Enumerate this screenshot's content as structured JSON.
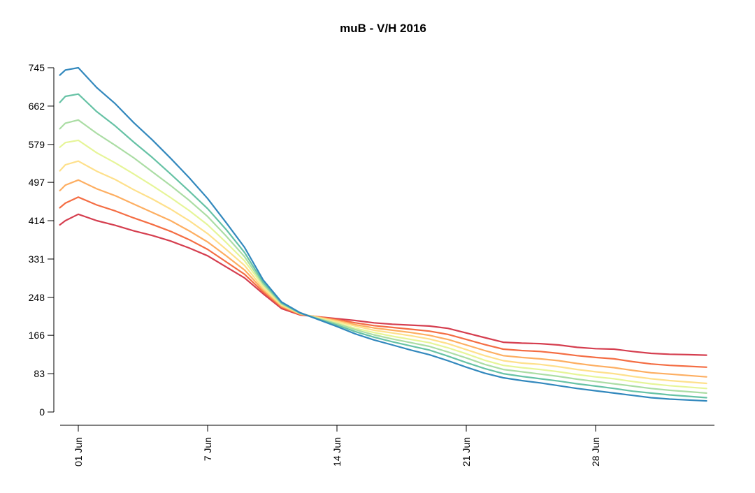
{
  "chart_data": {
    "type": "line",
    "title": "muB - V/H 2016",
    "xlabel": "",
    "ylabel": "",
    "grid": false,
    "ylim": [
      0,
      745
    ],
    "xlim": [
      0.72,
      35
    ],
    "y_ticks": [
      0,
      83,
      166,
      248,
      331,
      414,
      497,
      579,
      662,
      745
    ],
    "x_ticks": [
      {
        "value": 1,
        "label": "01 Jun"
      },
      {
        "value": 8,
        "label": "7 Jun"
      },
      {
        "value": 15,
        "label": "14 Jun"
      },
      {
        "value": 22,
        "label": "21 Jun"
      },
      {
        "value": 29,
        "label": "28 Jun"
      }
    ],
    "x": [
      0,
      0.3,
      1,
      2,
      3,
      4,
      5,
      6,
      7,
      8,
      9,
      10,
      11,
      12,
      13,
      14,
      15,
      16,
      17,
      18,
      19,
      20,
      21,
      22,
      23,
      24,
      25,
      26,
      27,
      28,
      29,
      30,
      31,
      32,
      33,
      34,
      35
    ],
    "series": [
      {
        "color": "#d53e4f",
        "values": [
          405,
          414,
          428,
          414,
          404,
          392,
          382,
          370,
          355,
          338,
          314,
          290,
          256,
          224,
          210,
          206,
          202,
          198,
          193,
          190,
          188,
          186,
          181,
          171,
          161,
          151,
          149,
          148,
          145,
          140,
          137,
          136,
          131,
          127,
          125,
          124,
          123
        ]
      },
      {
        "color": "#f46d43",
        "values": [
          442,
          452,
          465,
          448,
          435,
          420,
          406,
          391,
          373,
          352,
          325,
          298,
          260,
          227,
          211,
          206,
          200,
          193,
          187,
          183,
          179,
          175,
          168,
          157,
          146,
          136,
          133,
          131,
          127,
          122,
          118,
          115,
          109,
          104,
          101,
          99,
          97
        ]
      },
      {
        "color": "#fdae61",
        "values": [
          479,
          491,
          502,
          483,
          468,
          450,
          432,
          414,
          392,
          368,
          338,
          307,
          264,
          229,
          212,
          205,
          198,
          189,
          182,
          177,
          172,
          166,
          157,
          145,
          133,
          122,
          118,
          115,
          111,
          105,
          100,
          96,
          90,
          85,
          82,
          79,
          76
        ]
      },
      {
        "color": "#fee08b",
        "values": [
          522,
          535,
          543,
          521,
          503,
          481,
          461,
          439,
          414,
          386,
          352,
          317,
          268,
          231,
          213,
          204,
          196,
          186,
          177,
          171,
          165,
          158,
          148,
          135,
          122,
          111,
          106,
          103,
          98,
          92,
          87,
          83,
          77,
          72,
          68,
          65,
          62
        ]
      },
      {
        "color": "#e6f598",
        "values": [
          573,
          583,
          588,
          561,
          539,
          515,
          490,
          464,
          436,
          405,
          367,
          327,
          273,
          233,
          214,
          203,
          193,
          181,
          172,
          164,
          157,
          150,
          139,
          126,
          112,
          101,
          96,
          92,
          87,
          81,
          76,
          72,
          66,
          61,
          57,
          54,
          51
        ]
      },
      {
        "color": "#abdda4",
        "values": [
          613,
          625,
          632,
          603,
          577,
          550,
          520,
          490,
          458,
          423,
          381,
          336,
          277,
          234,
          214,
          202,
          191,
          178,
          167,
          158,
          150,
          142,
          130,
          117,
          103,
          92,
          87,
          82,
          77,
          71,
          66,
          61,
          56,
          51,
          47,
          44,
          41
        ]
      },
      {
        "color": "#66c2a5",
        "values": [
          670,
          683,
          688,
          650,
          619,
          584,
          551,
          515,
          478,
          440,
          395,
          345,
          281,
          236,
          214,
          201,
          188,
          174,
          162,
          152,
          143,
          134,
          121,
          107,
          94,
          83,
          77,
          72,
          67,
          61,
          56,
          51,
          45,
          41,
          37,
          34,
          31
        ]
      },
      {
        "color": "#3288bd",
        "values": [
          729,
          740,
          745,
          702,
          667,
          626,
          589,
          549,
          507,
          462,
          410,
          356,
          286,
          238,
          215,
          200,
          185,
          169,
          156,
          145,
          134,
          124,
          111,
          97,
          84,
          74,
          68,
          63,
          57,
          51,
          46,
          41,
          36,
          31,
          28,
          26,
          24
        ]
      }
    ]
  }
}
